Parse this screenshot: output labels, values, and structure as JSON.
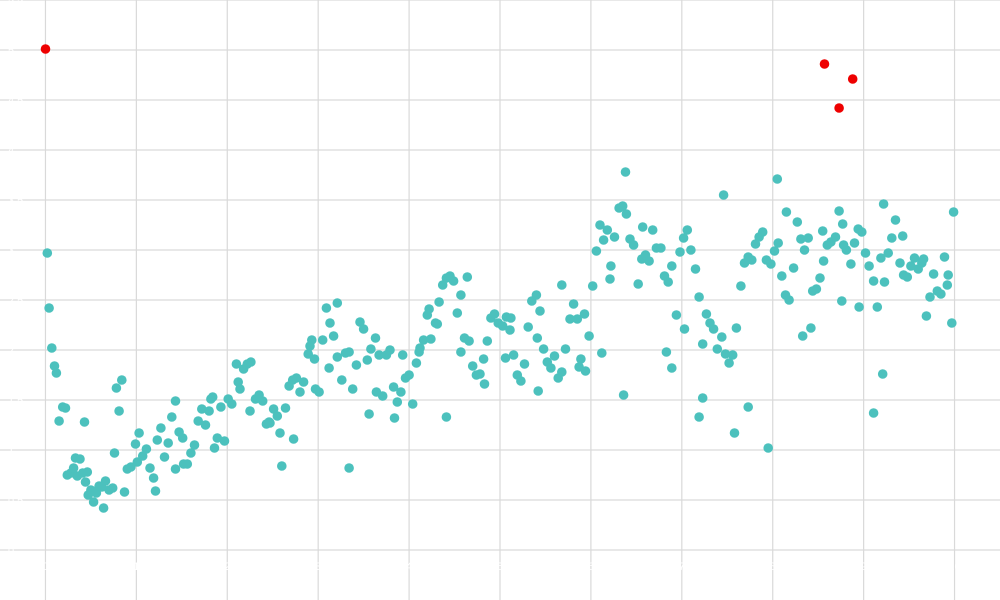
{
  "chart_data": {
    "type": "scatter",
    "title": "",
    "xlabel": "",
    "ylabel": "",
    "grid": true,
    "legend": "none",
    "xlim": [
      -0.5,
      10.5
    ],
    "ylim": [
      -0.5,
      5.5
    ],
    "x_gridlines": [
      0,
      1,
      2,
      3,
      4,
      5,
      6,
      7,
      8,
      9,
      10
    ],
    "y_gridlines": [
      0,
      0.5,
      1,
      1.5,
      2,
      2.5,
      3,
      3.5,
      4,
      4.5,
      5,
      5.5
    ],
    "colors": {
      "normal": "#4cc1bd",
      "outlier": "#ee0000",
      "grid": "#d9d9d9",
      "background": "#ffffff"
    },
    "series": [
      {
        "role": "normal",
        "points": [
          [
            0.02,
            2.97
          ],
          [
            0.04,
            2.42
          ],
          [
            0.07,
            2.02
          ],
          [
            0.1,
            1.84
          ],
          [
            0.12,
            1.77
          ],
          [
            0.15,
            1.29
          ],
          [
            0.19,
            1.43
          ],
          [
            0.22,
            1.42
          ],
          [
            0.28,
            0.77
          ],
          [
            0.31,
            0.82
          ],
          [
            0.35,
            0.74
          ],
          [
            0.38,
            0.91
          ],
          [
            0.41,
            0.77
          ],
          [
            0.44,
            0.68
          ],
          [
            0.47,
            0.55
          ],
          [
            0.5,
            0.6
          ],
          [
            0.53,
            0.48
          ],
          [
            0.56,
            0.57
          ],
          [
            0.59,
            0.64
          ],
          [
            0.62,
            0.63
          ],
          [
            0.66,
            0.69
          ],
          [
            0.7,
            0.6
          ],
          [
            0.74,
            0.62
          ],
          [
            0.78,
            1.62
          ],
          [
            0.81,
            1.39
          ],
          [
            0.84,
            1.7
          ],
          [
            0.87,
            0.58
          ],
          [
            0.9,
            0.81
          ],
          [
            0.94,
            0.83
          ],
          [
            0.99,
            1.06
          ],
          [
            1.03,
            1.17
          ],
          [
            1.07,
            0.94
          ],
          [
            1.11,
            1.01
          ],
          [
            1.15,
            0.82
          ],
          [
            1.19,
            0.72
          ],
          [
            1.23,
            1.1
          ],
          [
            1.27,
            1.22
          ],
          [
            1.31,
            0.93
          ],
          [
            1.35,
            1.07
          ],
          [
            1.39,
            1.33
          ],
          [
            1.43,
            1.49
          ],
          [
            1.47,
            1.18
          ],
          [
            1.52,
            0.86
          ],
          [
            1.56,
            0.86
          ],
          [
            1.6,
            0.97
          ],
          [
            1.64,
            1.05
          ],
          [
            1.68,
            1.29
          ],
          [
            1.72,
            1.41
          ],
          [
            1.76,
            1.25
          ],
          [
            1.8,
            1.39
          ],
          [
            1.84,
            1.53
          ],
          [
            1.89,
            1.12
          ],
          [
            1.93,
            1.43
          ],
          [
            1.97,
            1.09
          ],
          [
            2.01,
            1.51
          ],
          [
            2.05,
            1.46
          ],
          [
            2.1,
            1.86
          ],
          [
            2.14,
            1.61
          ],
          [
            2.18,
            1.81
          ],
          [
            2.22,
            1.86
          ],
          [
            2.26,
            1.88
          ],
          [
            2.31,
            1.51
          ],
          [
            2.35,
            1.55
          ],
          [
            2.39,
            1.49
          ],
          [
            2.43,
            1.26
          ],
          [
            2.47,
            1.27
          ],
          [
            2.51,
            1.41
          ],
          [
            2.55,
            1.34
          ],
          [
            2.6,
            0.84
          ],
          [
            2.64,
            1.42
          ],
          [
            2.68,
            1.64
          ],
          [
            2.72,
            1.7
          ],
          [
            2.76,
            1.72
          ],
          [
            2.8,
            1.58
          ],
          [
            2.84,
            1.68
          ],
          [
            2.89,
            1.96
          ],
          [
            2.93,
            2.1
          ],
          [
            2.97,
            1.61
          ],
          [
            3.01,
            1.58
          ],
          [
            3.05,
            2.1
          ],
          [
            3.09,
            2.42
          ],
          [
            3.13,
            2.27
          ],
          [
            3.17,
            2.14
          ],
          [
            3.21,
            1.93
          ],
          [
            3.26,
            1.7
          ],
          [
            3.3,
            1.97
          ],
          [
            3.34,
            1.98
          ],
          [
            3.38,
            1.61
          ],
          [
            3.42,
            1.85
          ],
          [
            3.46,
            2.28
          ],
          [
            3.5,
            2.21
          ],
          [
            3.54,
            1.9
          ],
          [
            3.58,
            2.01
          ],
          [
            3.63,
            2.12
          ],
          [
            3.67,
            1.95
          ],
          [
            3.71,
            1.54
          ],
          [
            3.75,
            1.95
          ],
          [
            3.79,
            2.0
          ],
          [
            3.83,
            1.63
          ],
          [
            3.87,
            1.48
          ],
          [
            3.91,
            1.58
          ],
          [
            3.96,
            1.72
          ],
          [
            4.0,
            1.75
          ],
          [
            4.04,
            1.46
          ],
          [
            4.08,
            1.87
          ],
          [
            4.12,
            2.02
          ],
          [
            4.16,
            2.1
          ],
          [
            4.2,
            2.35
          ],
          [
            4.24,
            2.11
          ],
          [
            4.29,
            2.27
          ],
          [
            4.33,
            2.48
          ],
          [
            4.37,
            2.65
          ],
          [
            4.41,
            2.72
          ],
          [
            4.45,
            2.74
          ],
          [
            4.49,
            2.69
          ],
          [
            4.53,
            2.37
          ],
          [
            4.57,
            1.98
          ],
          [
            4.61,
            2.12
          ],
          [
            4.66,
            2.09
          ],
          [
            4.7,
            1.84
          ],
          [
            4.74,
            1.75
          ],
          [
            4.78,
            1.76
          ],
          [
            4.82,
            1.91
          ],
          [
            4.86,
            2.09
          ],
          [
            4.9,
            2.32
          ],
          [
            4.94,
            2.36
          ],
          [
            4.98,
            2.27
          ],
          [
            5.03,
            2.24
          ],
          [
            5.07,
            2.33
          ],
          [
            5.11,
            2.2
          ],
          [
            5.15,
            1.95
          ],
          [
            5.19,
            1.75
          ],
          [
            5.23,
            1.69
          ],
          [
            5.27,
            1.86
          ],
          [
            5.31,
            2.23
          ],
          [
            5.35,
            2.49
          ],
          [
            5.4,
            2.55
          ],
          [
            5.44,
            2.39
          ],
          [
            5.48,
            2.01
          ],
          [
            5.52,
            1.88
          ],
          [
            5.56,
            1.82
          ],
          [
            5.6,
            1.94
          ],
          [
            5.64,
            1.72
          ],
          [
            5.68,
            1.78
          ],
          [
            5.72,
            2.01
          ],
          [
            5.77,
            2.31
          ],
          [
            5.81,
            2.46
          ],
          [
            5.85,
            2.31
          ],
          [
            5.89,
            1.91
          ],
          [
            5.94,
            1.79
          ],
          [
            5.98,
            2.14
          ],
          [
            6.02,
            2.64
          ],
          [
            6.06,
            2.99
          ],
          [
            6.1,
            3.25
          ],
          [
            6.14,
            3.1
          ],
          [
            6.18,
            3.2
          ],
          [
            6.22,
            2.84
          ],
          [
            6.26,
            3.13
          ],
          [
            6.31,
            3.42
          ],
          [
            6.35,
            3.44
          ],
          [
            6.39,
            3.36
          ],
          [
            6.43,
            3.11
          ],
          [
            6.47,
            3.05
          ],
          [
            6.52,
            2.66
          ],
          [
            6.56,
            2.91
          ],
          [
            6.6,
            2.95
          ],
          [
            6.64,
            2.89
          ],
          [
            6.68,
            3.2
          ],
          [
            6.72,
            3.02
          ],
          [
            6.77,
            3.02
          ],
          [
            6.81,
            2.74
          ],
          [
            6.85,
            2.68
          ],
          [
            6.89,
            2.84
          ],
          [
            6.94,
            2.35
          ],
          [
            6.98,
            2.98
          ],
          [
            7.02,
            3.12
          ],
          [
            7.06,
            3.2
          ],
          [
            7.1,
            3.0
          ],
          [
            7.15,
            2.81
          ],
          [
            7.19,
            2.53
          ],
          [
            7.23,
            2.06
          ],
          [
            7.27,
            2.36
          ],
          [
            7.31,
            2.27
          ],
          [
            7.35,
            2.21
          ],
          [
            7.39,
            2.01
          ],
          [
            7.44,
            2.13
          ],
          [
            7.48,
            1.96
          ],
          [
            7.52,
            1.87
          ],
          [
            7.56,
            1.95
          ],
          [
            7.6,
            2.22
          ],
          [
            7.65,
            2.64
          ],
          [
            7.69,
            2.87
          ],
          [
            7.73,
            2.93
          ],
          [
            7.77,
            2.9
          ],
          [
            7.81,
            3.06
          ],
          [
            7.85,
            3.13
          ],
          [
            7.89,
            3.18
          ],
          [
            7.93,
            2.9
          ],
          [
            7.98,
            2.86
          ],
          [
            8.02,
            2.99
          ],
          [
            8.06,
            3.07
          ],
          [
            8.1,
            2.74
          ],
          [
            8.14,
            2.55
          ],
          [
            8.18,
            2.5
          ],
          [
            8.23,
            2.82
          ],
          [
            8.27,
            3.28
          ],
          [
            8.31,
            3.11
          ],
          [
            8.35,
            3.0
          ],
          [
            8.39,
            3.12
          ],
          [
            8.44,
            2.59
          ],
          [
            8.48,
            2.61
          ],
          [
            8.52,
            2.72
          ],
          [
            8.56,
            2.89
          ],
          [
            8.6,
            3.05
          ],
          [
            8.64,
            3.08
          ],
          [
            8.69,
            3.13
          ],
          [
            8.73,
            3.39
          ],
          [
            8.77,
            3.26
          ],
          [
            8.81,
            3.0
          ],
          [
            8.86,
            2.86
          ],
          [
            8.9,
            3.07
          ],
          [
            8.94,
            3.21
          ],
          [
            8.98,
            3.18
          ],
          [
            9.02,
            2.97
          ],
          [
            9.06,
            2.84
          ],
          [
            9.11,
            2.69
          ],
          [
            9.15,
            2.43
          ],
          [
            9.19,
            2.92
          ],
          [
            9.23,
            2.68
          ],
          [
            9.27,
            2.97
          ],
          [
            9.31,
            3.12
          ],
          [
            9.35,
            3.3
          ],
          [
            9.4,
            2.87
          ],
          [
            9.44,
            2.75
          ],
          [
            9.48,
            2.73
          ],
          [
            9.52,
            2.84
          ],
          [
            9.56,
            2.92
          ],
          [
            9.6,
            2.81
          ],
          [
            9.64,
            2.87
          ],
          [
            9.69,
            2.34
          ],
          [
            9.73,
            2.53
          ],
          [
            9.77,
            2.76
          ],
          [
            9.81,
            2.59
          ],
          [
            9.85,
            2.56
          ],
          [
            9.89,
            2.93
          ],
          [
            9.93,
            2.75
          ],
          [
            9.97,
            2.27
          ],
          [
            9.99,
            3.38
          ],
          [
            0.24,
            0.75
          ],
          [
            0.43,
            1.28
          ],
          [
            0.76,
            0.97
          ],
          [
            1.21,
            0.59
          ],
          [
            1.51,
            1.12
          ],
          [
            1.86,
            1.02
          ],
          [
            2.25,
            1.39
          ],
          [
            2.58,
            1.17
          ],
          [
            2.96,
            1.91
          ],
          [
            3.12,
            1.82
          ],
          [
            3.34,
            0.82
          ],
          [
            3.64,
            1.58
          ],
          [
            3.93,
            1.95
          ],
          [
            4.22,
            2.41
          ],
          [
            4.41,
            1.33
          ],
          [
            4.57,
            2.55
          ],
          [
            4.83,
            1.66
          ],
          [
            5.12,
            2.32
          ],
          [
            5.42,
            1.59
          ],
          [
            5.68,
            2.65
          ],
          [
            5.93,
            2.36
          ],
          [
            6.21,
            2.71
          ],
          [
            6.38,
            3.78
          ],
          [
            6.57,
            3.23
          ],
          [
            6.83,
            1.98
          ],
          [
            7.03,
            2.21
          ],
          [
            7.19,
            1.33
          ],
          [
            7.46,
            3.55
          ],
          [
            7.73,
            1.43
          ],
          [
            8.05,
            3.71
          ],
          [
            8.15,
            3.38
          ],
          [
            8.33,
            2.14
          ],
          [
            8.55,
            3.19
          ],
          [
            8.78,
            3.05
          ],
          [
            8.95,
            2.43
          ],
          [
            9.22,
            3.46
          ],
          [
            9.43,
            3.14
          ],
          [
            9.66,
            2.91
          ],
          [
            9.92,
            2.65
          ],
          [
            9.21,
            1.76
          ],
          [
            9.11,
            1.37
          ],
          [
            8.76,
            2.49
          ],
          [
            8.42,
            2.22
          ],
          [
            7.95,
            1.02
          ],
          [
            7.58,
            1.17
          ],
          [
            7.23,
            1.52
          ],
          [
            6.89,
            1.82
          ],
          [
            6.36,
            1.55
          ],
          [
            6.12,
            1.97
          ],
          [
            5.87,
            1.83
          ],
          [
            5.41,
            2.12
          ],
          [
            5.06,
            1.92
          ],
          [
            4.64,
            2.73
          ],
          [
            4.31,
            2.26
          ],
          [
            4.11,
            1.98
          ],
          [
            3.84,
            1.32
          ],
          [
            3.56,
            1.36
          ],
          [
            3.21,
            2.47
          ],
          [
            2.91,
            2.04
          ],
          [
            2.73,
            1.11
          ],
          [
            2.46,
            1.28
          ],
          [
            2.12,
            1.68
          ],
          [
            1.82,
            1.51
          ],
          [
            1.43,
            0.81
          ],
          [
            1.01,
            0.88
          ],
          [
            0.64,
            0.42
          ],
          [
            0.33,
            0.92
          ],
          [
            0.46,
            0.78
          ]
        ]
      },
      {
        "role": "outlier",
        "points": [
          [
            0.0,
            5.01
          ],
          [
            8.57,
            4.86
          ],
          [
            8.73,
            4.42
          ],
          [
            8.88,
            4.71
          ]
        ]
      }
    ]
  }
}
